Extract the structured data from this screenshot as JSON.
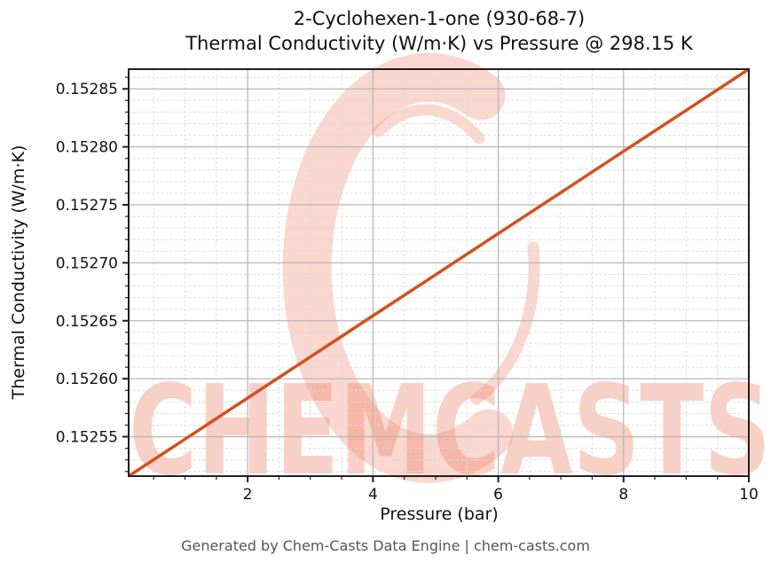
{
  "footer": "Generated by Chem-Casts Data Engine | chem-casts.com",
  "watermark": {
    "text": "CHEMCASTS",
    "base_color": "#f0836a",
    "text_opacity": 0.38,
    "logo_opacity": 0.32
  },
  "chart_data": {
    "type": "line",
    "title": "2-Cyclohexen-1-one (930-68-7)",
    "subtitle": "Thermal Conductivity (W/m·K) vs Pressure @ 298.15 K",
    "xlabel": "Pressure (bar)",
    "ylabel": "Thermal Conductivity (W/m·K)",
    "xlim": [
      0.1,
      10
    ],
    "ylim": [
      0.152516,
      0.152867
    ],
    "x_major_ticks": [
      2,
      4,
      6,
      8,
      10
    ],
    "x_minor_step": 0.5,
    "y_major_ticks": [
      0.15255,
      0.1526,
      0.15265,
      0.1527,
      0.15275,
      0.1528,
      0.15285
    ],
    "y_minor_step": 1e-05,
    "y_tick_decimals": 5,
    "grid": {
      "major": true,
      "minor": true,
      "major_color": "#b8b8b8",
      "minor_color": "#dcdcdc"
    },
    "axis_color": "#1f1f1f",
    "line_color": "#d2521e",
    "line_width": 3.5,
    "legend": "none",
    "series": [
      {
        "name": "Thermal Conductivity",
        "x": [
          0.1,
          1,
          2,
          3,
          4,
          5,
          6,
          7,
          8,
          9,
          10
        ],
        "y": [
          0.152516,
          0.1525479,
          0.1525834,
          0.1526188,
          0.1526543,
          0.1526897,
          0.1527252,
          0.1527606,
          0.1527961,
          0.1528315,
          0.152867
        ]
      }
    ]
  }
}
